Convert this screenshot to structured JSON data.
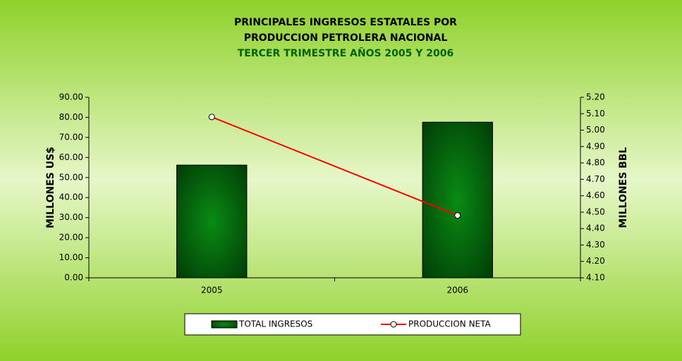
{
  "chart_data": {
    "type": "bar-line",
    "title": [
      "PRINCIPALES INGRESOS ESTATALES POR",
      "PRODUCCION PETROLERA NACIONAL"
    ],
    "subtitle": "TERCER TRIMESTRE AÑOS 2005 Y 2006",
    "ylabel": "MILLONES US$",
    "y2label": "MILLONES BBL",
    "categories": [
      "2005",
      "2006"
    ],
    "series": [
      {
        "name": "TOTAL INGRESOS",
        "type": "bar",
        "color": "#006400",
        "values": [
          56.2,
          77.6
        ]
      },
      {
        "name": "PRODUCCION NETA",
        "type": "line",
        "axis": "y2",
        "color": "#ff0000",
        "values": [
          5.08,
          4.48
        ]
      }
    ],
    "ylim": [
      0,
      90
    ],
    "yticks": [
      {
        "value": 0,
        "label": "0.00"
      },
      {
        "value": 10,
        "label": "10.00"
      },
      {
        "value": 20,
        "label": "20.00"
      },
      {
        "value": 30,
        "label": "30.00"
      },
      {
        "value": 40,
        "label": "40.00"
      },
      {
        "value": 50,
        "label": "50.00"
      },
      {
        "value": 60,
        "label": "60.00"
      },
      {
        "value": 70,
        "label": "70.00"
      },
      {
        "value": 80,
        "label": "80.00"
      },
      {
        "value": 90,
        "label": "90.00"
      }
    ],
    "y2lim": [
      4.1,
      5.2
    ],
    "y2ticks": [
      {
        "value": 4.1,
        "label": "4.10"
      },
      {
        "value": 4.2,
        "label": "4.20"
      },
      {
        "value": 4.3,
        "label": "4.30"
      },
      {
        "value": 4.4,
        "label": "4.40"
      },
      {
        "value": 4.5,
        "label": "4.50"
      },
      {
        "value": 4.6,
        "label": "4.60"
      },
      {
        "value": 4.7,
        "label": "4.70"
      },
      {
        "value": 4.8,
        "label": "4.80"
      },
      {
        "value": 4.9,
        "label": "4.90"
      },
      {
        "value": 5.0,
        "label": "5.00"
      },
      {
        "value": 5.1,
        "label": "5.10"
      },
      {
        "value": 5.2,
        "label": "5.20"
      }
    ],
    "grid": false,
    "legend": "bottom"
  }
}
